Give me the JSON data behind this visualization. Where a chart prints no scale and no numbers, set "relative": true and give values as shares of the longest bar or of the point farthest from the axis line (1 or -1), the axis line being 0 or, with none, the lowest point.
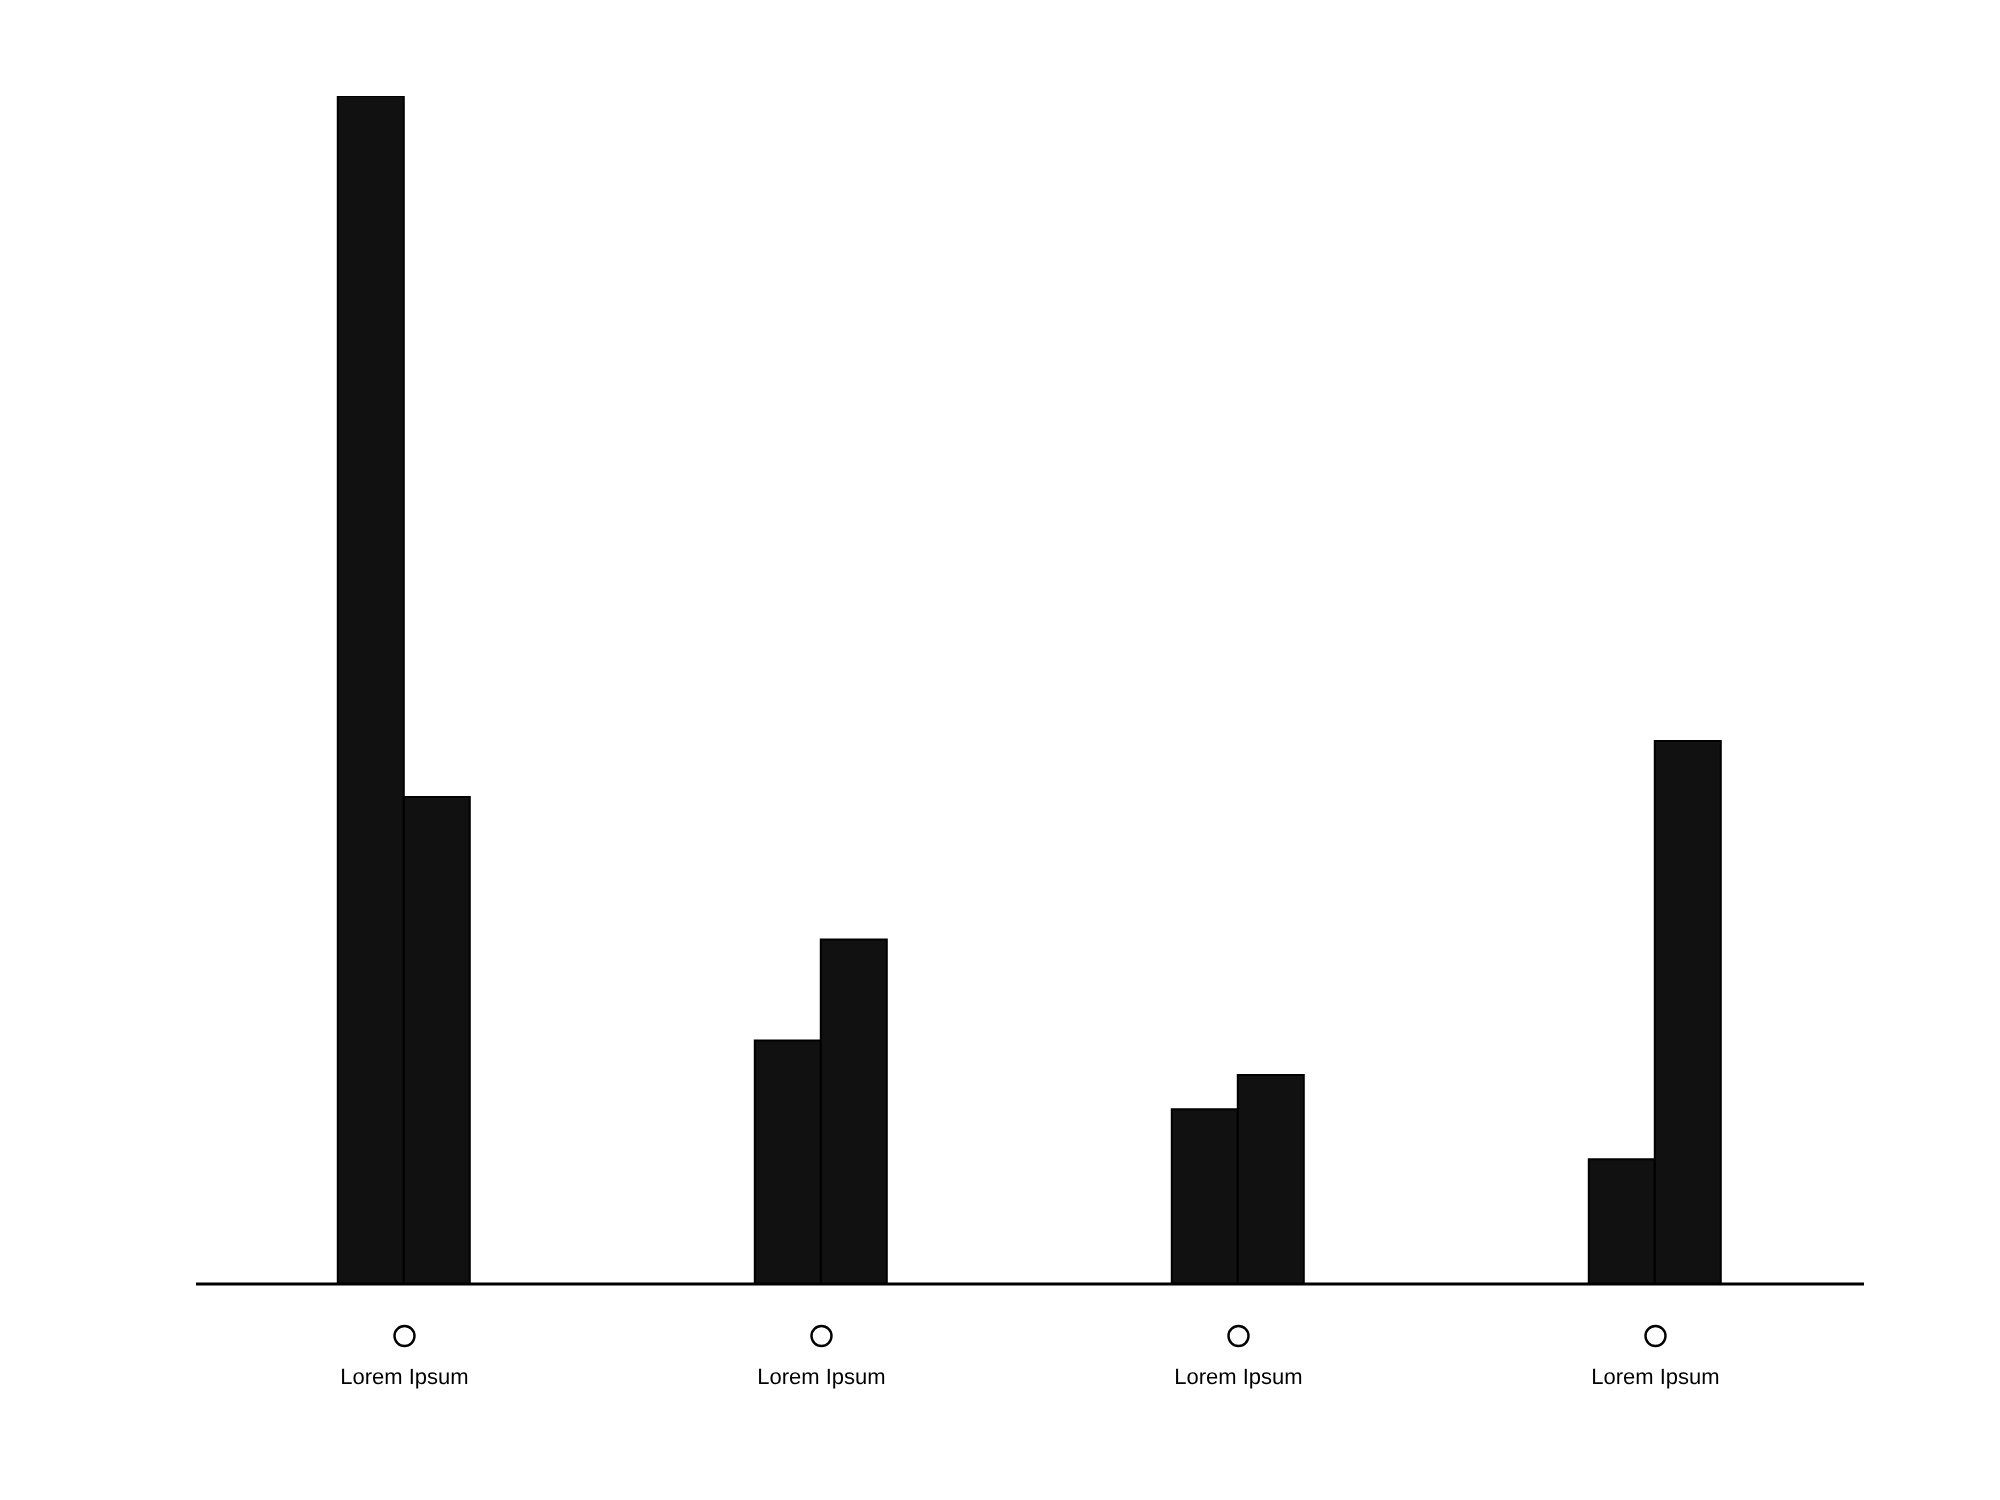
{
  "chart_data": {
    "type": "bar",
    "relative": true,
    "categories": [
      "Lorem Ipsum",
      "Lorem Ipsum",
      "Lorem Ipsum",
      "Lorem Ipsum"
    ],
    "series": [
      {
        "color": "#111111",
        "values": [
          1,
          0.205,
          0.147,
          0.105
        ]
      },
      {
        "color": "#111111",
        "values": [
          0.41,
          0.29,
          0.176,
          0.457
        ]
      }
    ],
    "grid": false,
    "legend": false
  }
}
